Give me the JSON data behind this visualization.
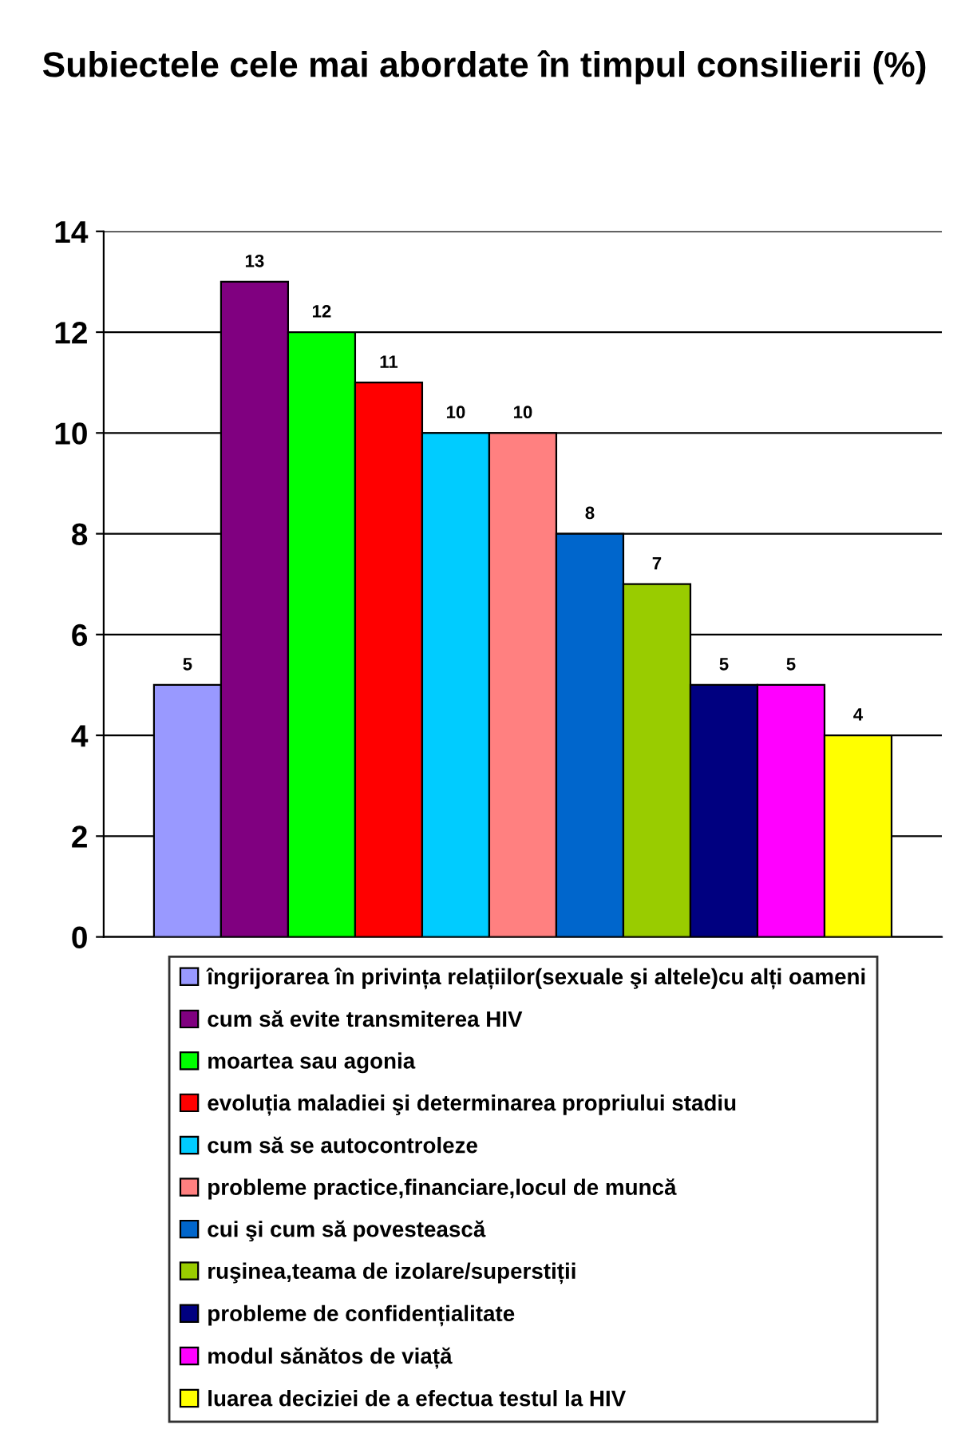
{
  "chart_data": {
    "type": "bar",
    "title": "Subiectele cele mai abordate în timpul consilierii (%)",
    "categories": [
      null
    ],
    "series": [
      {
        "name": "îngrijorarea în privința relațiilor(sexuale şi altele)cu alți oameni",
        "color": "#9999ff",
        "values": [
          5
        ]
      },
      {
        "name": "cum să evite transmiterea HIV",
        "color": "#800080",
        "values": [
          13
        ]
      },
      {
        "name": "moartea sau agonia",
        "color": "#00ff00",
        "values": [
          12
        ]
      },
      {
        "name": "evoluția maladiei şi determinarea propriului stadiu",
        "color": "#ff0000",
        "values": [
          11
        ]
      },
      {
        "name": "cum să se autocontroleze",
        "color": "#00ccff",
        "values": [
          10
        ]
      },
      {
        "name": "probleme practice,financiare,locul de muncă",
        "color": "#ff8080",
        "values": [
          10
        ]
      },
      {
        "name": "cui şi cum să povestească",
        "color": "#0066cc",
        "values": [
          8
        ]
      },
      {
        "name": "ruşinea,teama de izolare/superstiții",
        "color": "#99cc00",
        "values": [
          7
        ]
      },
      {
        "name": "probleme de confidențialitate",
        "color": "#000080",
        "values": [
          5
        ]
      },
      {
        "name": "modul sănătos de viață",
        "color": "#ff00ff",
        "values": [
          5
        ]
      },
      {
        "name": "luarea deciziei de a efectua testul la HIV",
        "color": "#ffff00",
        "values": [
          4
        ]
      }
    ],
    "ylim": [
      0,
      14
    ],
    "yticks": [
      0,
      2,
      4,
      6,
      8,
      10,
      12,
      14
    ],
    "grid": "y",
    "legend": "bottom",
    "data_labels": true
  }
}
